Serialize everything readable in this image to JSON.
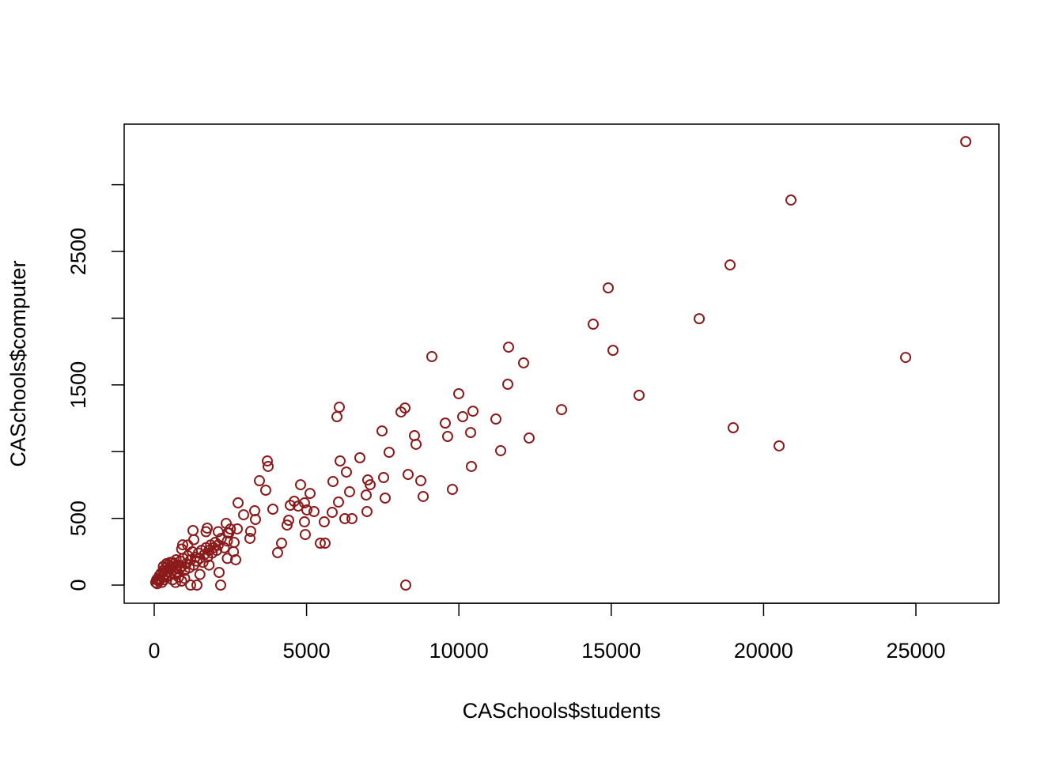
{
  "chart_data": {
    "type": "scatter",
    "x_label": "CASchools$students",
    "y_label": "CASchools$computer",
    "color": "#8b1a1a",
    "xlim": [
      -986,
      27725
    ],
    "ylim": [
      -136,
      3454
    ],
    "xticks": [
      0,
      5000,
      10000,
      15000,
      20000,
      25000
    ],
    "yticks": [
      0,
      500,
      1500,
      2500
    ],
    "yticks_unlabeled": [
      1000,
      2000,
      3000
    ],
    "x": [
      26636,
      20898,
      18900,
      14901,
      14408,
      17887,
      24663,
      15057,
      9112,
      11630,
      12123,
      11604,
      9995,
      15914,
      13370,
      10462,
      11215,
      10125,
      9553,
      10385,
      9631,
      12305,
      11371,
      10410,
      19003,
      20509,
      6075,
      5997,
      8230,
      8100,
      7477,
      8541,
      8593,
      7710,
      6750,
      6101,
      6308,
      7009,
      7087,
      7529,
      8333,
      8749,
      8827,
      9787,
      7580,
      6957,
      6412,
      6983,
      6256,
      6490,
      5867,
      6049,
      5841,
      5581,
      5452,
      5607,
      8255,
      3712,
      3738,
      3453,
      3660,
      3894,
      4050,
      4180,
      4361,
      4465,
      4595,
      4725,
      4803,
      4932,
      5114,
      5010,
      4932,
      4958,
      5244,
      4413,
      2752,
      2934,
      2726,
      2622,
      2674,
      3297,
      3323,
      3167,
      3141,
      2181,
      2129,
      2362,
      2414,
      1739,
      1272,
      935,
      1402,
      1194,
      50,
      80,
      100,
      120,
      150,
      170,
      200,
      230,
      250,
      280,
      300,
      320,
      350,
      380,
      400,
      420,
      450,
      480,
      500,
      520,
      550,
      580,
      600,
      620,
      650,
      680,
      700,
      720,
      750,
      780,
      800,
      830,
      860,
      900,
      950,
      1000,
      1050,
      1100,
      1150,
      1200,
      1250,
      1300,
      1350,
      1400,
      1450,
      1500,
      1550,
      1600,
      1650,
      1700,
      1750,
      1800,
      1850,
      1900,
      1950,
      2000,
      2050,
      2100,
      2200,
      2300,
      2400,
      2450,
      2500,
      2600,
      900,
      1100,
      1300,
      1700,
      2100,
      700,
      900,
      1500,
      1800,
      2400,
      1000,
      600,
      400,
      300
    ],
    "values": [
      3323,
      2885,
      2399,
      2227,
      1955,
      1996,
      1706,
      1759,
      1712,
      1783,
      1665,
      1505,
      1434,
      1422,
      1315,
      1303,
      1244,
      1262,
      1214,
      1143,
      1114,
      1102,
      1007,
      889,
      1179,
      1043,
      1333,
      1262,
      1327,
      1297,
      1155,
      1120,
      1055,
      995,
      954,
      930,
      847,
      788,
      752,
      806,
      829,
      782,
      664,
      717,
      652,
      675,
      699,
      551,
      498,
      498,
      776,
      622,
      545,
      474,
      314,
      314,
      0,
      930,
      889,
      782,
      711,
      569,
      243,
      314,
      450,
      598,
      628,
      592,
      752,
      616,
      687,
      563,
      474,
      379,
      551,
      486,
      616,
      527,
      421,
      320,
      190,
      557,
      492,
      403,
      350,
      0,
      95,
      462,
      391,
      427,
      409,
      302,
      0,
      0,
      20,
      40,
      10,
      50,
      30,
      70,
      45,
      90,
      20,
      60,
      110,
      40,
      80,
      130,
      60,
      100,
      150,
      70,
      120,
      170,
      90,
      140,
      40,
      110,
      160,
      80,
      130,
      190,
      100,
      150,
      60,
      120,
      180,
      140,
      200,
      110,
      160,
      220,
      130,
      190,
      250,
      150,
      210,
      180,
      240,
      200,
      260,
      170,
      230,
      280,
      210,
      260,
      300,
      240,
      280,
      320,
      260,
      300,
      350,
      280,
      330,
      390,
      420,
      250,
      270,
      300,
      340,
      400,
      400,
      20,
      30,
      80,
      150,
      200,
      50,
      170,
      160,
      140
    ]
  }
}
